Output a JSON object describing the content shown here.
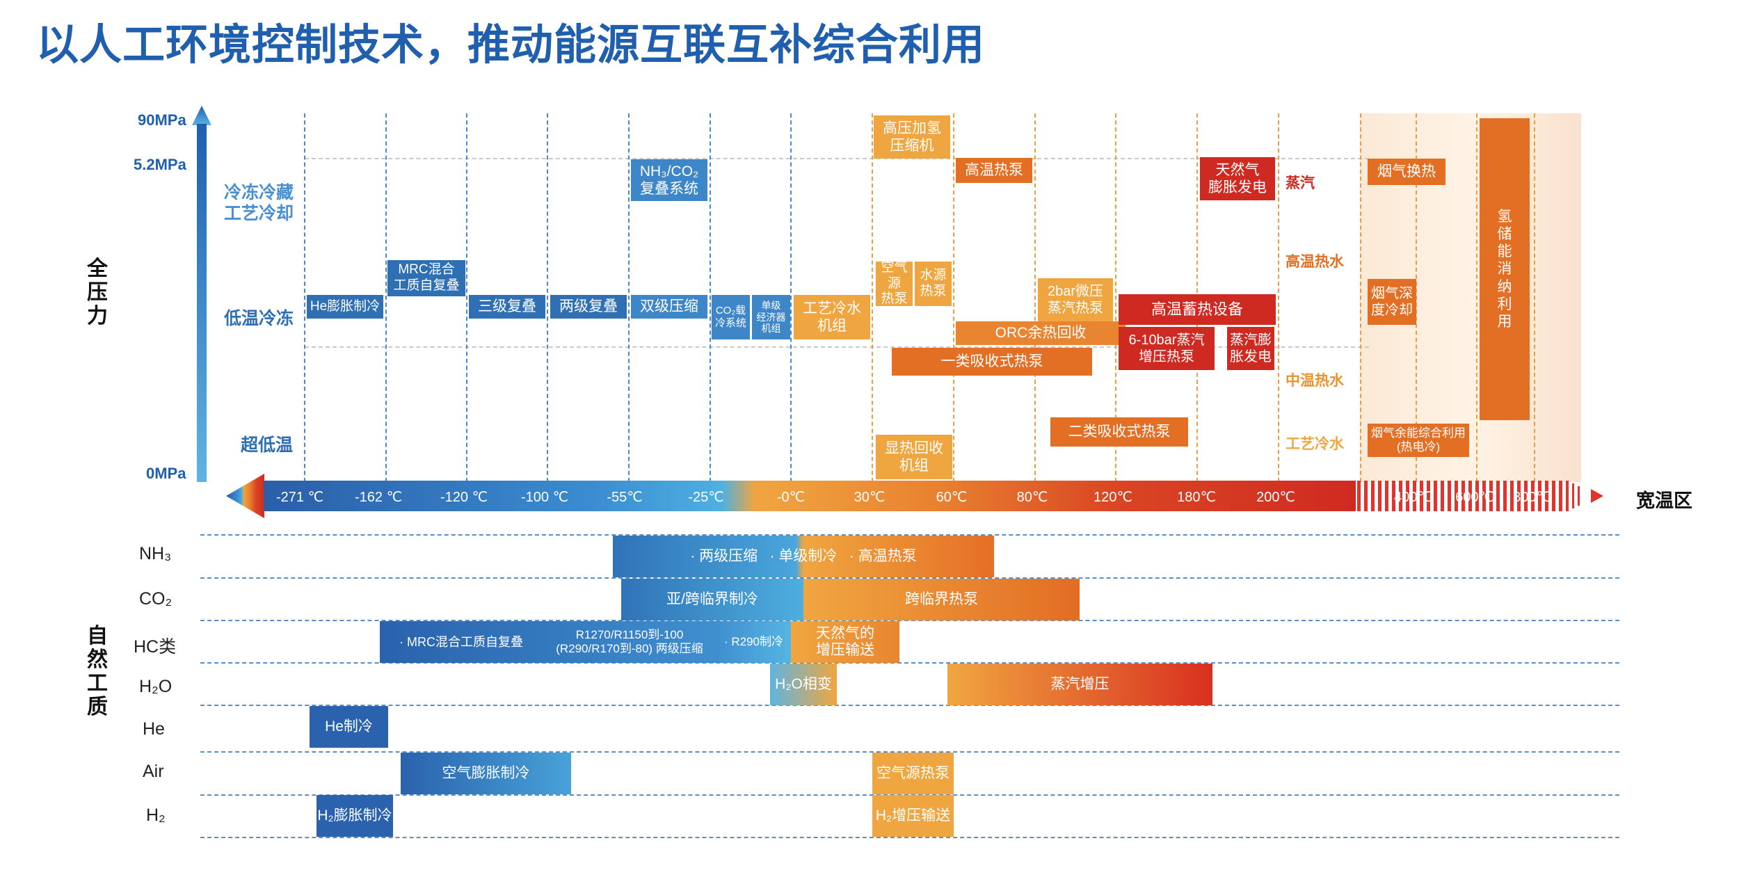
{
  "title": "以人工环境控制技术，推动能源互联互补综合利用",
  "colors": {
    "blue_dark": "#2f6fb4",
    "blue_light": "#3d86c8",
    "orange_light": "#f0a640",
    "orange": "#e98530",
    "red": "#cf2a22",
    "title_blue": "#1f5fae"
  },
  "y_axis": {
    "name": "全压力",
    "pressure_top": "90MPa",
    "pressure_mid": "5.2MPa",
    "pressure_bottom": "0MPa",
    "band_freeze": "冷冻冷藏\n工艺冷却",
    "band_low": "低温冷冻",
    "band_ultra": "超低温"
  },
  "x_axis": {
    "name": "宽温区",
    "ticks": [
      "-271 ℃",
      "-162 ℃",
      "-120 ℃",
      "-100 ℃",
      "-55℃",
      "-25℃",
      "-0℃",
      "30℃",
      "60℃",
      "80℃",
      "120℃",
      "180℃",
      "200℃",
      "400℃",
      "600℃",
      "800℃"
    ]
  },
  "right_labels": {
    "steam": "蒸汽",
    "hot_water_high": "高温热水",
    "hot_water_mid": "中温热水",
    "process_cold_water": "工艺冷水"
  },
  "tech": {
    "he_expansion": "He膨胀制冷",
    "mrc": "MRC混合\n工质自复叠",
    "three_stage": "三级复叠",
    "two_stage": "两级复叠",
    "nh3_co2_cascade": "NH₃/CO₂\n复叠系统",
    "two_stage_compression": "双级压缩",
    "co2_carrier": "CO₂载\n冷系统",
    "single_economizer": "单级\n经济器\n机组",
    "process_chiller": "工艺冷水\n机组",
    "hp_hydrogen": "高压加氢\n压缩机",
    "air_source_hp": "空气源\n热泵",
    "water_source_hp": "水源\n热泵",
    "sensible_heat": "显热回收\n机组",
    "high_temp_hp": "高温热泵",
    "steam_2bar": "2bar微压\n蒸汽热泵",
    "orc": "ORC余热回收",
    "absorption_1": "一类吸收式热泵",
    "absorption_2": "二类吸收式热泵",
    "heat_storage": "高温蓄热设备",
    "steam_6_10bar": "6-10bar蒸汽\n增压热泵",
    "steam_expansion_power": "蒸汽膨\n胀发电",
    "ng_expansion_power": "天然气\n膨胀发电",
    "flue_gas_exchange": "烟气换热",
    "flue_gas_deep_cool": "烟气深\n度冷却",
    "flue_gas_combined": "烟气余能综合利用\n(热电冷)",
    "hydrogen_storage": "氢\n储\n能\n消\n纳\n利\n用"
  },
  "fluids": {
    "name": "自然工质",
    "nh3": {
      "label": "NH₃",
      "bar": "· 两级压缩   · 单级制冷   · 高温热泵"
    },
    "co2": {
      "label": "CO₂",
      "bar_cold": "亚/跨临界制冷",
      "bar_hot": "跨临界热泵"
    },
    "hc": {
      "label": "HC类",
      "bar_a": "· MRC混合工质自复叠",
      "bar_b": "R1270/R1150到-100\n(R290/R170到-80) 两级压缩",
      "bar_c": "· R290制冷",
      "bar_hot": "天然气的\n增压输送"
    },
    "h2o": {
      "label": "H₂O",
      "bar_cold": "H₂O相变",
      "bar_hot": "蒸汽增压"
    },
    "he": {
      "label": "He",
      "bar": "He制冷"
    },
    "air": {
      "label": "Air",
      "bar_cold": "空气膨胀制冷",
      "bar_hot": "空气源热泵"
    },
    "h2": {
      "label": "H₂",
      "bar_cold": "H₂膨胀制冷",
      "bar_hot": "H₂增压输送"
    }
  }
}
